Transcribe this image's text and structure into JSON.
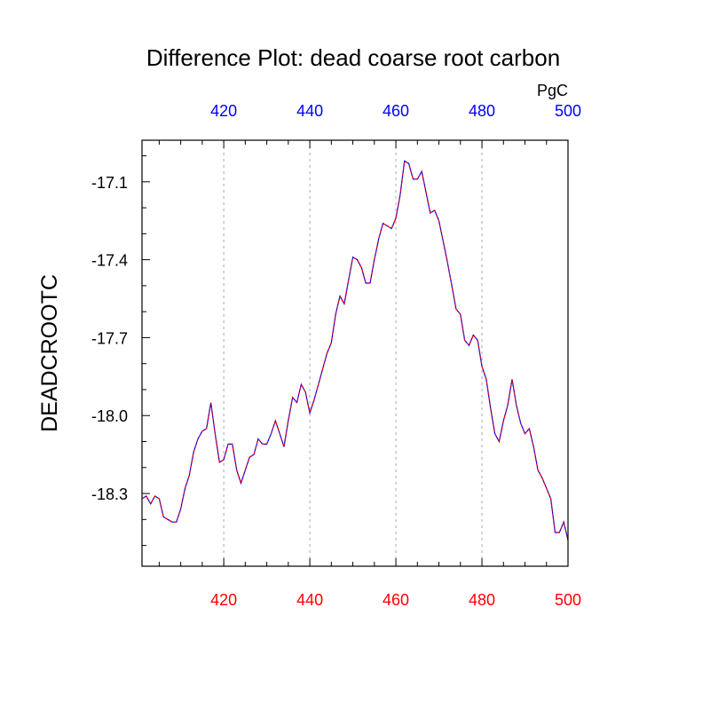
{
  "chart_data": {
    "type": "line",
    "title": "Difference Plot: dead coarse root carbon",
    "ylabel": "DEADCROOTC",
    "units": "PgC",
    "xlim": [
      401,
      500
    ],
    "ylim": [
      -18.58,
      -16.94
    ],
    "bottom_ticks": [
      420,
      440,
      460,
      480,
      500
    ],
    "top_ticks": [
      420,
      440,
      460,
      480,
      500
    ],
    "y_ticks": [
      -17.1,
      -17.4,
      -17.7,
      -18.0,
      -18.3
    ],
    "y_tick_labels": [
      "-17.1",
      "-17.4",
      "-17.7",
      "-18.0",
      "-18.3"
    ],
    "grid_x": [
      420,
      440,
      460,
      480
    ],
    "colors": {
      "bottom_axis": "#ff0000",
      "top_axis": "#0000ff",
      "series_a": "#0000ff",
      "series_b": "#ff0000",
      "grid": "#aaaaaa"
    },
    "series": [
      {
        "x": [
          401,
          402,
          403,
          404,
          405,
          406,
          407,
          408,
          409,
          410,
          411,
          412,
          413,
          414,
          415,
          416,
          417,
          418,
          419,
          420,
          421,
          422,
          423,
          424,
          425,
          426,
          427,
          428,
          429,
          430,
          431,
          432,
          433,
          434,
          435,
          436,
          437,
          438,
          439,
          440,
          441,
          442,
          443,
          444,
          445,
          446,
          447,
          448,
          449,
          450,
          451,
          452,
          453,
          454,
          455,
          456,
          457,
          458,
          459,
          460,
          461,
          462,
          463,
          464,
          465,
          466,
          467,
          468,
          469,
          470,
          471,
          472,
          473,
          474,
          475,
          476,
          477,
          478,
          479,
          480,
          481,
          482,
          483,
          484,
          485,
          486,
          487,
          488,
          489,
          490,
          491,
          492,
          493,
          494,
          495,
          496,
          497,
          498,
          499,
          500
        ],
        "y": [
          -18.32,
          -18.31,
          -18.34,
          -18.31,
          -18.32,
          -18.39,
          -18.4,
          -18.41,
          -18.41,
          -18.36,
          -18.28,
          -18.23,
          -18.14,
          -18.09,
          -18.06,
          -18.05,
          -17.95,
          -18.07,
          -18.18,
          -18.17,
          -18.11,
          -18.11,
          -18.21,
          -18.26,
          -18.21,
          -18.16,
          -18.15,
          -18.09,
          -18.11,
          -18.11,
          -18.07,
          -18.02,
          -18.07,
          -18.12,
          -18.02,
          -17.93,
          -17.95,
          -17.88,
          -17.91,
          -17.99,
          -17.94,
          -17.88,
          -17.82,
          -17.76,
          -17.72,
          -17.61,
          -17.54,
          -17.57,
          -17.48,
          -17.39,
          -17.4,
          -17.43,
          -17.49,
          -17.49,
          -17.4,
          -17.32,
          -17.26,
          -17.27,
          -17.28,
          -17.24,
          -17.15,
          -17.02,
          -17.03,
          -17.09,
          -17.09,
          -17.06,
          -17.14,
          -17.22,
          -17.21,
          -17.25,
          -17.33,
          -17.41,
          -17.5,
          -17.59,
          -17.61,
          -17.71,
          -17.73,
          -17.69,
          -17.71,
          -17.81,
          -17.86,
          -17.97,
          -18.07,
          -18.1,
          -18.02,
          -17.96,
          -17.86,
          -17.96,
          -18.03,
          -18.07,
          -18.05,
          -18.12,
          -18.21,
          -18.24,
          -18.28,
          -18.32,
          -18.45,
          -18.45,
          -18.41,
          -18.48
        ]
      }
    ]
  }
}
